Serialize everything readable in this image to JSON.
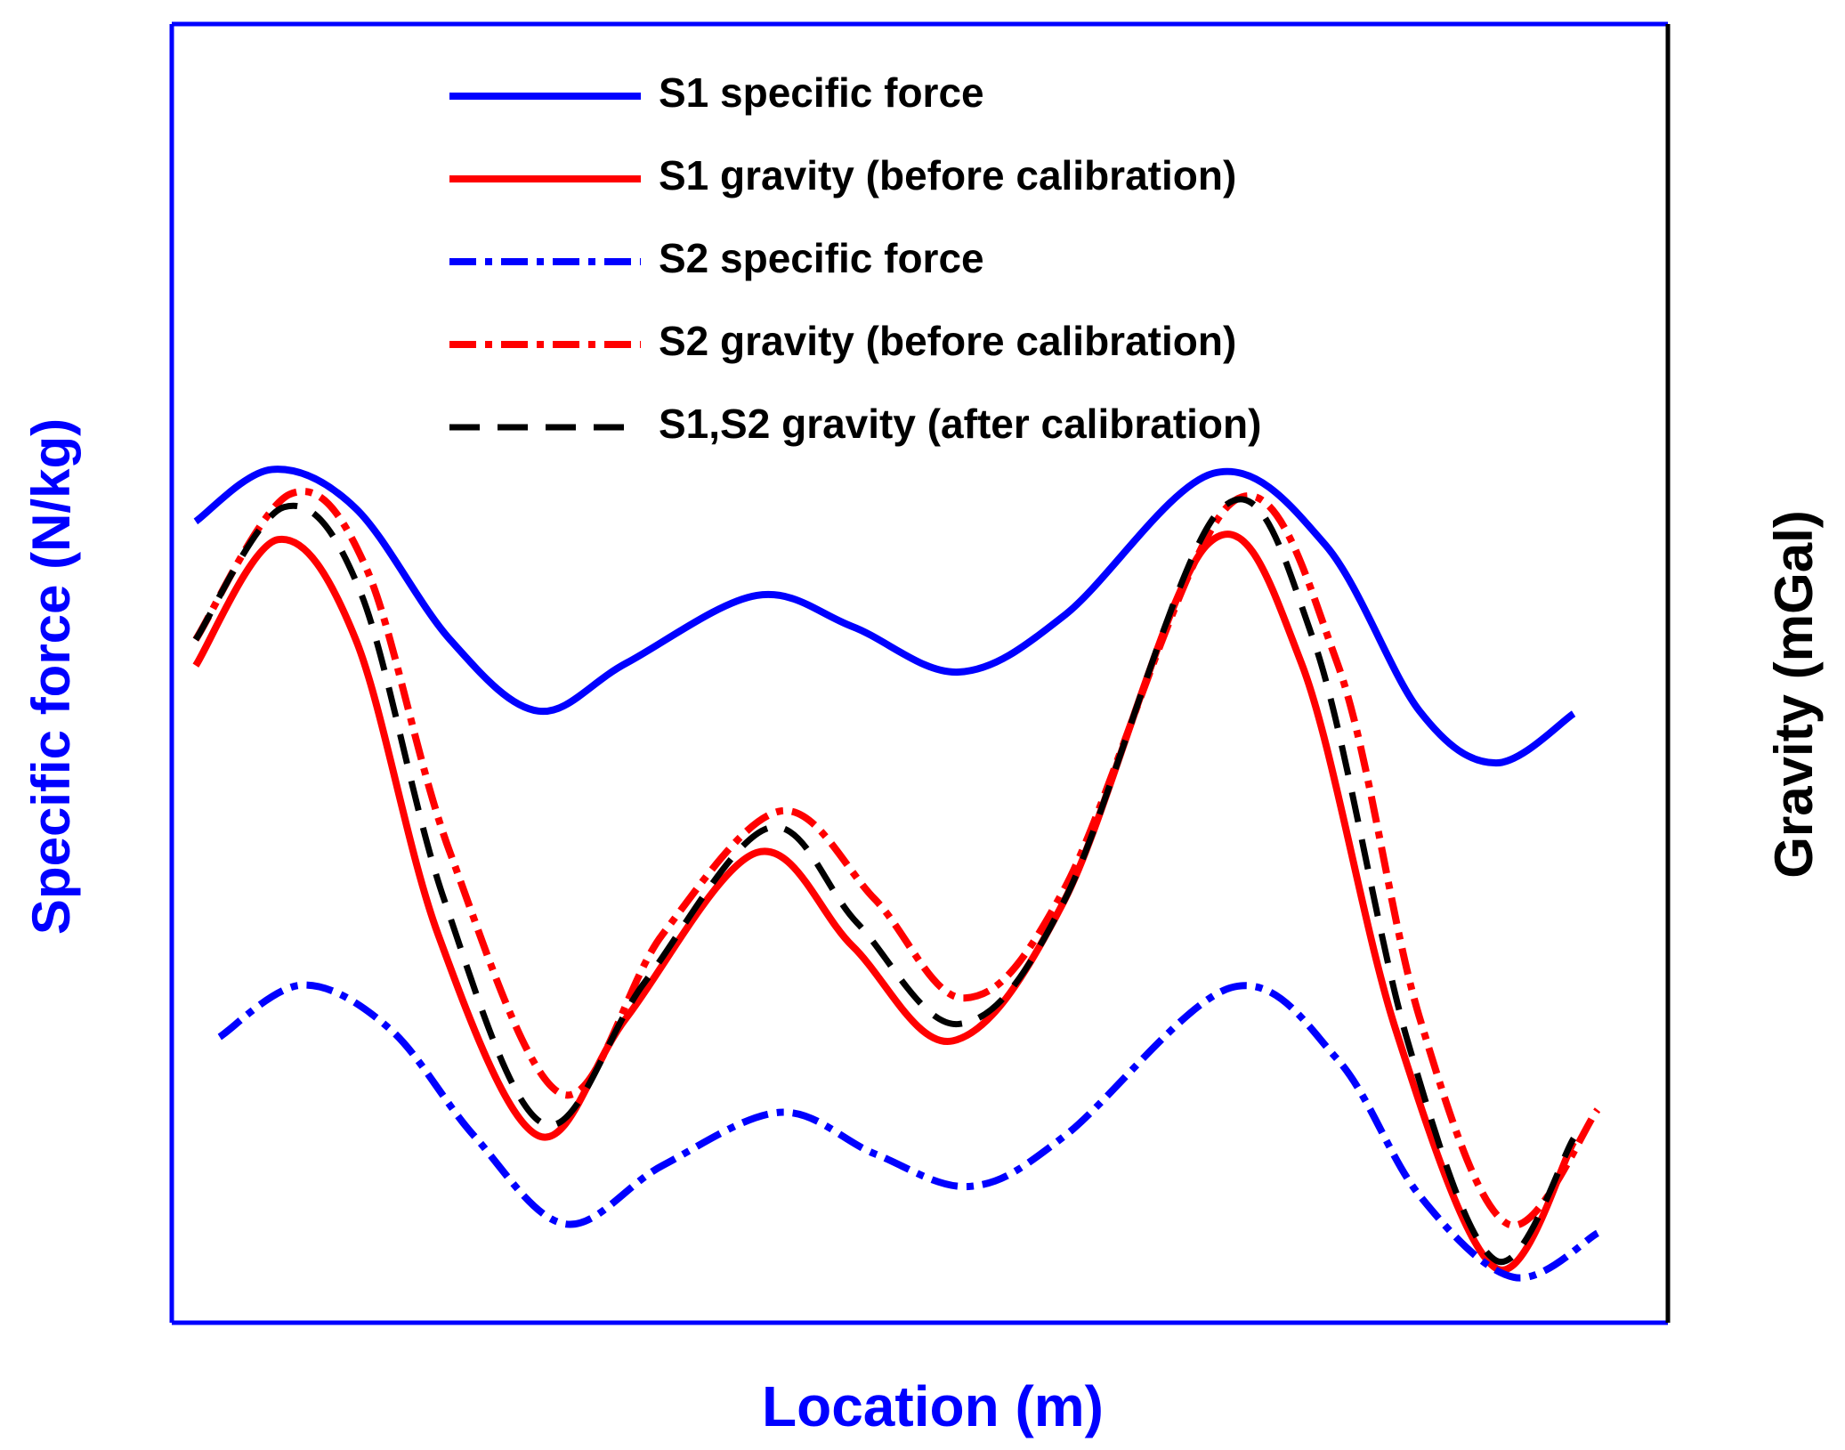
{
  "chart_data": {
    "type": "line",
    "xlabel": "Location (m)",
    "ylabel": "Specific force (N/kg)",
    "y2label": "Gravity (mGal)",
    "xlim": [
      0,
      100
    ],
    "ylim": [
      0,
      100
    ],
    "y2lim": [
      0,
      100
    ],
    "series": [
      {
        "name": "S1 specific force",
        "color": "#0000ff",
        "linestyle": "solid",
        "axis": "y",
        "x": [
          1.6,
          6.7,
          12.3,
          18.6,
          24.5,
          30.4,
          39.1,
          45.5,
          52.6,
          59.7,
          69.6,
          77.1,
          83.4,
          88.5,
          93.7
        ],
        "values": [
          61.7,
          65.7,
          62.7,
          52.6,
          47.1,
          50.8,
          56.0,
          53.6,
          50.1,
          54.5,
          65.4,
          59.9,
          47.1,
          43.1,
          46.9
        ]
      },
      {
        "name": "S1 gravity (before calibration)",
        "color": "#ff0000",
        "linestyle": "solid",
        "axis": "y2",
        "x": [
          1.6,
          7.1,
          12.3,
          17.8,
          24.5,
          30.4,
          39.1,
          45.5,
          52.2,
          59.7,
          69.2,
          75.5,
          81.8,
          88.5,
          93.7
        ],
        "values": [
          50.6,
          60.3,
          52.6,
          29.9,
          14.4,
          23.5,
          36.2,
          29.0,
          21.7,
          32.6,
          59.9,
          50.8,
          22.6,
          4.2,
          13.9
        ]
      },
      {
        "name": "S2 specific force",
        "color": "#0000ff",
        "linestyle": "dashdot",
        "axis": "y",
        "x": [
          3.2,
          8.7,
          14.6,
          20.2,
          26.3,
          32.8,
          40.7,
          47.0,
          53.4,
          59.7,
          70.8,
          77.9,
          83.4,
          89.7,
          95.3
        ],
        "values": [
          22.0,
          26.0,
          22.6,
          14.4,
          7.6,
          12.1,
          16.2,
          13.0,
          10.5,
          14.4,
          25.8,
          20.3,
          9.8,
          3.5,
          6.9
        ]
      },
      {
        "name": "S2 gravity (before calibration)",
        "color": "#ff0000",
        "linestyle": "dashdot",
        "axis": "y2",
        "x": [
          1.6,
          7.9,
          13.0,
          18.6,
          26.1,
          32.8,
          40.7,
          47.0,
          53.0,
          59.7,
          70.8,
          77.9,
          83.4,
          89.3,
          95.3
        ],
        "values": [
          52.6,
          63.8,
          58.1,
          36.2,
          17.6,
          29.9,
          39.4,
          32.6,
          25.0,
          33.5,
          63.1,
          50.8,
          23.5,
          7.6,
          16.4
        ]
      },
      {
        "name": "S1,S2 gravity (after calibration)",
        "color": "#000000",
        "linestyle": "dashed",
        "axis": "y2",
        "x": [
          1.6,
          7.5,
          12.6,
          18.2,
          24.9,
          31.6,
          39.9,
          45.8,
          52.6,
          59.7,
          70.0,
          76.3,
          82.6,
          88.5,
          93.7
        ],
        "values": [
          52.6,
          62.8,
          56.3,
          32.6,
          15.3,
          26.2,
          38.1,
          30.8,
          23.0,
          32.6,
          62.5,
          52.6,
          21.7,
          4.8,
          14.2
        ]
      }
    ]
  }
}
